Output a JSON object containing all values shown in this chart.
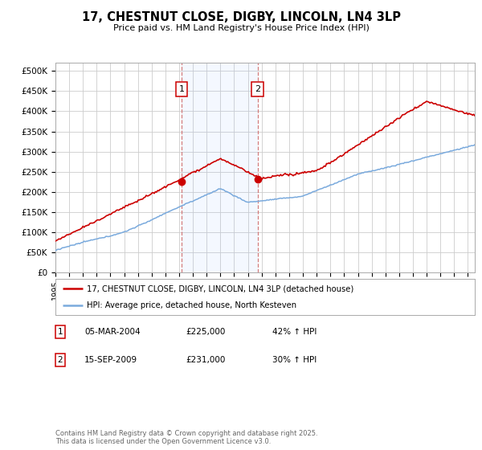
{
  "title": "17, CHESTNUT CLOSE, DIGBY, LINCOLN, LN4 3LP",
  "subtitle": "Price paid vs. HM Land Registry's House Price Index (HPI)",
  "yticks": [
    0,
    50000,
    100000,
    150000,
    200000,
    250000,
    300000,
    350000,
    400000,
    450000,
    500000
  ],
  "ytick_labels": [
    "£0",
    "£50K",
    "£100K",
    "£150K",
    "£200K",
    "£250K",
    "£300K",
    "£350K",
    "£400K",
    "£450K",
    "£500K"
  ],
  "xmin": 1995.0,
  "xmax": 2025.5,
  "ymin": 0,
  "ymax": 520000,
  "line1_color": "#cc0000",
  "line2_color": "#7aaadd",
  "line1_label": "17, CHESTNUT CLOSE, DIGBY, LINCOLN, LN4 3LP (detached house)",
  "line2_label": "HPI: Average price, detached house, North Kesteven",
  "sale1_x": 2004.17,
  "sale1_y": 225000,
  "sale2_x": 2009.71,
  "sale2_y": 231000,
  "table_rows": [
    {
      "num": "1",
      "date": "05-MAR-2004",
      "price": "£225,000",
      "change": "42% ↑ HPI"
    },
    {
      "num": "2",
      "date": "15-SEP-2009",
      "price": "£231,000",
      "change": "30% ↑ HPI"
    }
  ],
  "footer": "Contains HM Land Registry data © Crown copyright and database right 2025.\nThis data is licensed under the Open Government Licence v3.0.",
  "bg_color": "#ffffff",
  "grid_color": "#cccccc",
  "shade_color": "#ddeeff"
}
